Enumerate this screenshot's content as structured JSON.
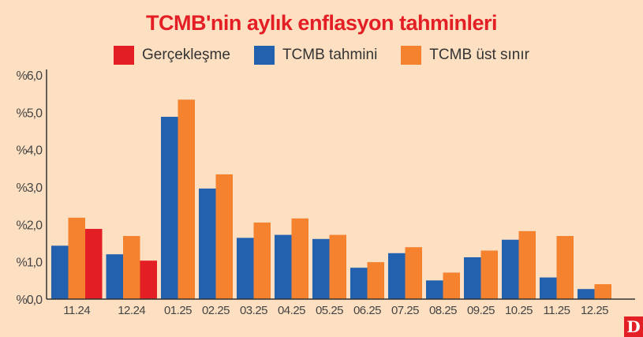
{
  "chart_data": {
    "type": "bar",
    "title": "TCMB'nin aylık enflasyon tahminleri",
    "xlabel": "",
    "ylabel": "",
    "ylim": [
      0,
      6
    ],
    "yticks": [
      "%0,0",
      "%1,0",
      "%2,0",
      "%3,0",
      "%4,0",
      "%5,0",
      "%6,0"
    ],
    "legend_position": "top",
    "categories": [
      "11.24",
      "12.24",
      "01.25",
      "02.25",
      "03.25",
      "04.25",
      "05.25",
      "06.25",
      "07.25",
      "08.25",
      "09.25",
      "10.25",
      "11.25",
      "12.25"
    ],
    "series": [
      {
        "name": "TCMB tahmini",
        "color": "#2361ae",
        "values": [
          1.43,
          1.2,
          4.88,
          2.96,
          1.64,
          1.72,
          1.61,
          0.84,
          1.23,
          0.5,
          1.12,
          1.59,
          0.58,
          0.27
        ]
      },
      {
        "name": "TCMB üst sınır",
        "color": "#f5822f",
        "values": [
          2.18,
          1.69,
          5.34,
          3.34,
          2.05,
          2.16,
          1.72,
          0.99,
          1.39,
          0.71,
          1.3,
          1.82,
          1.69,
          0.4
        ]
      },
      {
        "name": "Gerçekleşme",
        "color": "#e31e24",
        "values": [
          1.88,
          1.03,
          null,
          null,
          null,
          null,
          null,
          null,
          null,
          null,
          null,
          null,
          null,
          null
        ]
      }
    ],
    "legend_order": [
      2,
      0,
      1
    ]
  },
  "logo": "D"
}
